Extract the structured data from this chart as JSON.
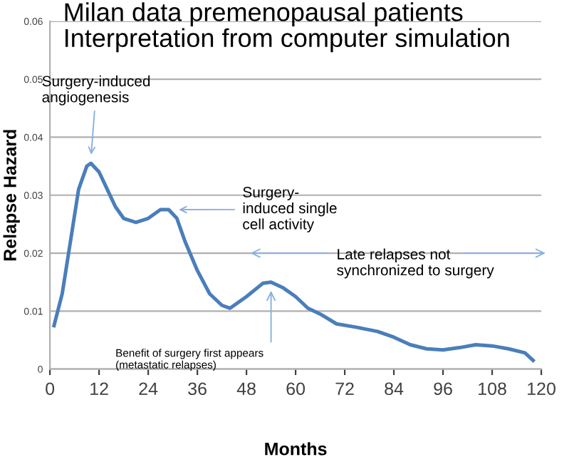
{
  "chart_data": {
    "type": "line",
    "title": "Milan data premenopausal patients\nInterpretation from computer simulation",
    "xlabel": "Months",
    "ylabel": "Relapse Hazard",
    "x": [
      1,
      3,
      5,
      7,
      9,
      10,
      12,
      14,
      16,
      18,
      21,
      24,
      27,
      29,
      31,
      33,
      36,
      39,
      42,
      44,
      48,
      52,
      54,
      57,
      60,
      63,
      66,
      70,
      75,
      80,
      84,
      88,
      92,
      96,
      100,
      104,
      108,
      112,
      116,
      118
    ],
    "series": [
      {
        "color": "#4a7ebb",
        "values": [
          0.0075,
          0.013,
          0.022,
          0.031,
          0.035,
          0.0355,
          0.034,
          0.031,
          0.028,
          0.026,
          0.0253,
          0.026,
          0.0275,
          0.0275,
          0.026,
          0.022,
          0.017,
          0.013,
          0.011,
          0.0105,
          0.0125,
          0.0148,
          0.015,
          0.014,
          0.0125,
          0.0105,
          0.0095,
          0.0078,
          0.0072,
          0.0065,
          0.0055,
          0.0042,
          0.0035,
          0.0033,
          0.0037,
          0.0042,
          0.004,
          0.0035,
          0.0028,
          0.0015
        ]
      }
    ],
    "xlim": [
      0,
      120
    ],
    "xticks": [
      0,
      12,
      24,
      36,
      48,
      60,
      72,
      84,
      96,
      108,
      120
    ],
    "ylim": [
      0,
      0.06
    ],
    "yticks": [
      0,
      0.01,
      0.02,
      0.03,
      0.04,
      0.05,
      0.06
    ],
    "grid": "y",
    "marker": "none",
    "line_style": "solid",
    "legend": false,
    "annotations": [
      {
        "text": "Surgery-induced\nangiogenesis",
        "x": 10,
        "y": 0.0355
      },
      {
        "text": "Surgery-\ninduced single\ncell activity",
        "x": 30,
        "y": 0.0275
      },
      {
        "text": "Benefit of surgery first appears\n(metastatic relapses)",
        "x": 54,
        "y": 0.015
      },
      "Late relapses not\nsynchronized to surgery"
    ]
  }
}
